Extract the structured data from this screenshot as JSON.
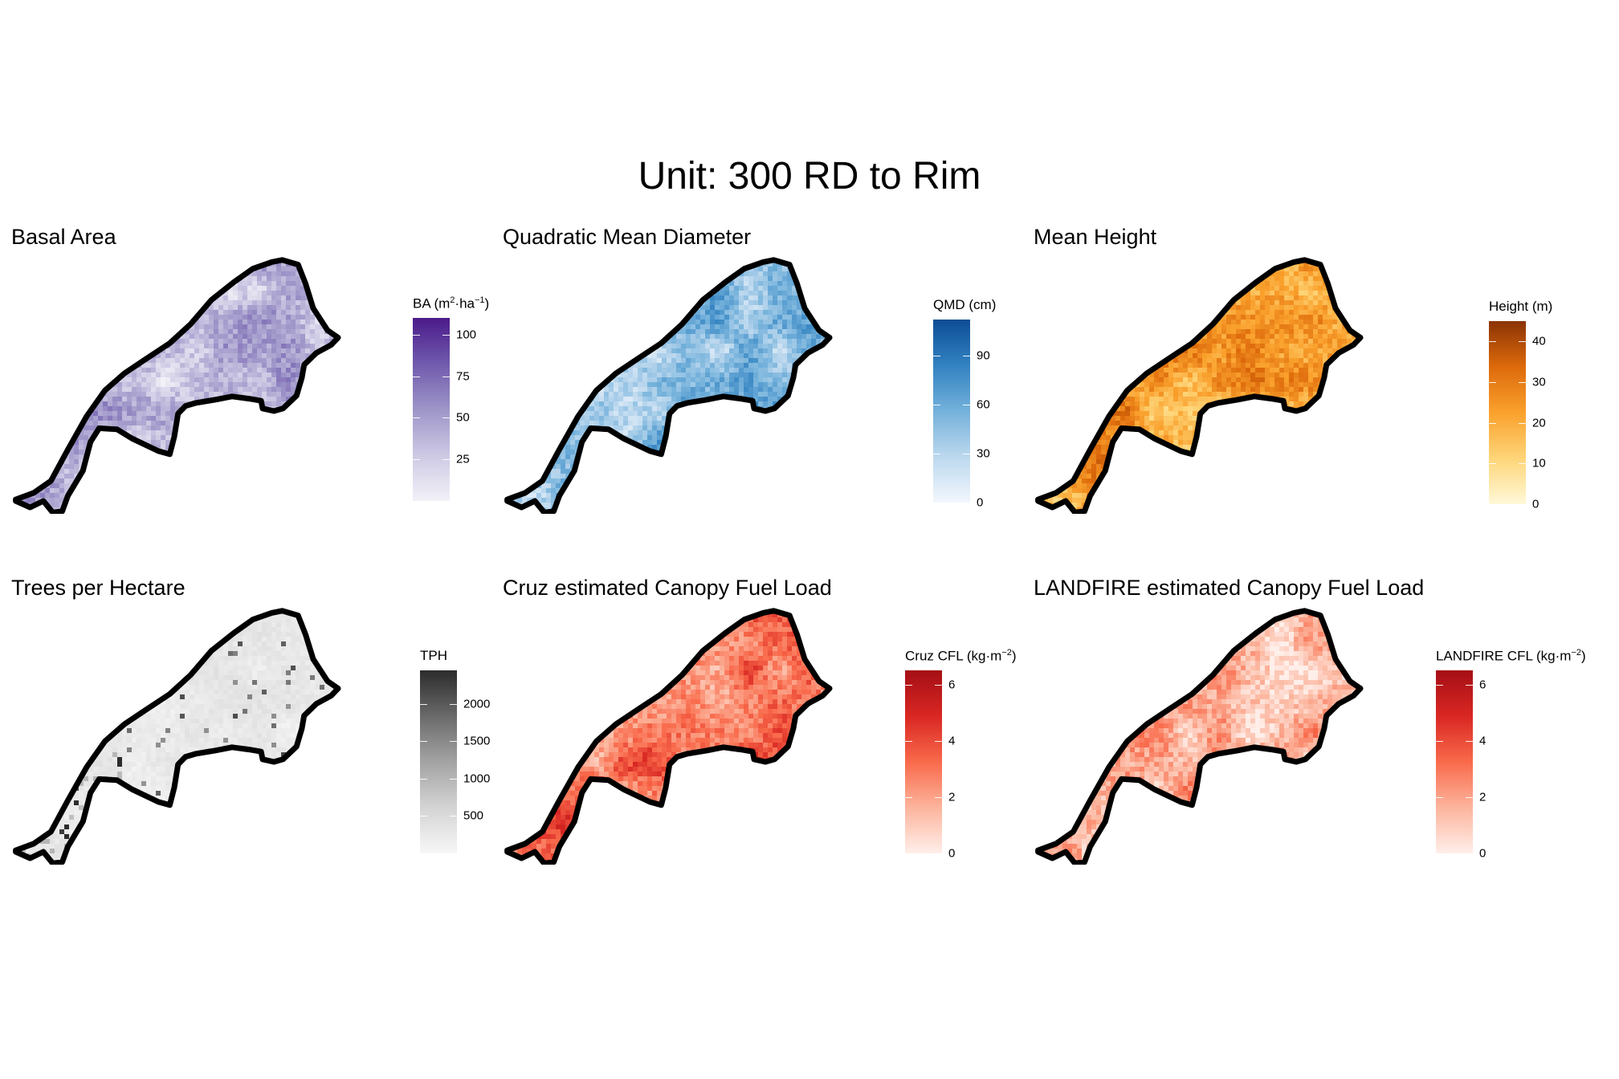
{
  "title": "Unit: 300 RD to Rim",
  "panels": [
    {
      "id": "ba",
      "title": "Basal Area",
      "legend_title": "BA (m",
      "legend_title_html": "BA (m<sup>2</sup>&middot;ha<sup>&minus;1</sup>)",
      "scale": {
        "min": 0,
        "max": 110
      },
      "ticks": [
        "100",
        "75",
        "50",
        "25"
      ],
      "tick_values": [
        100,
        75,
        50,
        25
      ],
      "colors": [
        "#f3f1f8",
        "#cdc9e4",
        "#9e95c8",
        "#705aad",
        "#4b1a8a"
      ],
      "mean": 0.33
    },
    {
      "id": "qmd",
      "title": "Quadratic Mean Diameter",
      "legend_title": "QMD (cm)",
      "legend_title_html": "QMD (cm)",
      "scale": {
        "min": 0,
        "max": 112
      },
      "ticks": [
        "90",
        "60",
        "30",
        "0"
      ],
      "tick_values": [
        90,
        60,
        30,
        0
      ],
      "colors": [
        "#f2f7fd",
        "#bcd8ee",
        "#74b1db",
        "#3282c1",
        "#0d4d96"
      ],
      "mean": 0.42
    },
    {
      "id": "height",
      "title": "Mean Height",
      "legend_title": "Height (m)",
      "legend_title_html": "Height (m)",
      "scale": {
        "min": 0,
        "max": 45
      },
      "ticks": [
        "40",
        "30",
        "20",
        "10",
        "0"
      ],
      "tick_values": [
        40,
        30,
        20,
        10,
        0
      ],
      "colors": [
        "#fff9d9",
        "#fed578",
        "#faa12d",
        "#dd6a0b",
        "#8b3304"
      ],
      "mean": 0.5
    },
    {
      "id": "tph",
      "title": "Trees per Hectare",
      "legend_title": "TPH",
      "legend_title_html": "TPH",
      "scale": {
        "min": 0,
        "max": 2450
      },
      "ticks": [
        "2000",
        "1500",
        "1000",
        "500"
      ],
      "tick_values": [
        2000,
        1500,
        1000,
        500
      ],
      "colors": [
        "#f7f7f7",
        "#d4d4d4",
        "#a3a3a3",
        "#6a6a6a",
        "#2c2c2c"
      ],
      "mean": 0.12
    },
    {
      "id": "cruz",
      "title": "Cruz estimated Canopy Fuel Load",
      "legend_title": "Cruz CFL (kg",
      "legend_title_html": "Cruz CFL (kg&middot;m<sup>&minus;2</sup>)",
      "scale": {
        "min": 0,
        "max": 6.5
      },
      "ticks": [
        "6",
        "4",
        "2",
        "0"
      ],
      "tick_values": [
        6,
        4,
        2,
        0
      ],
      "colors": [
        "#ffefea",
        "#fcb49c",
        "#f96a4b",
        "#d92723",
        "#a50f15"
      ],
      "mean": 0.48
    },
    {
      "id": "landfire",
      "title": "LANDFIRE estimated Canopy Fuel Load",
      "legend_title": "LANDFIRE CFL (kg",
      "legend_title_html": "LANDFIRE CFL (kg&middot;m<sup>&minus;2</sup>)",
      "scale": {
        "min": 0,
        "max": 6.5
      },
      "ticks": [
        "6",
        "4",
        "2",
        "0"
      ],
      "tick_values": [
        6,
        4,
        2,
        0
      ],
      "colors": [
        "#ffefea",
        "#fcb49c",
        "#f96a4b",
        "#d92723",
        "#a50f15"
      ],
      "mean": 0.24
    }
  ]
}
